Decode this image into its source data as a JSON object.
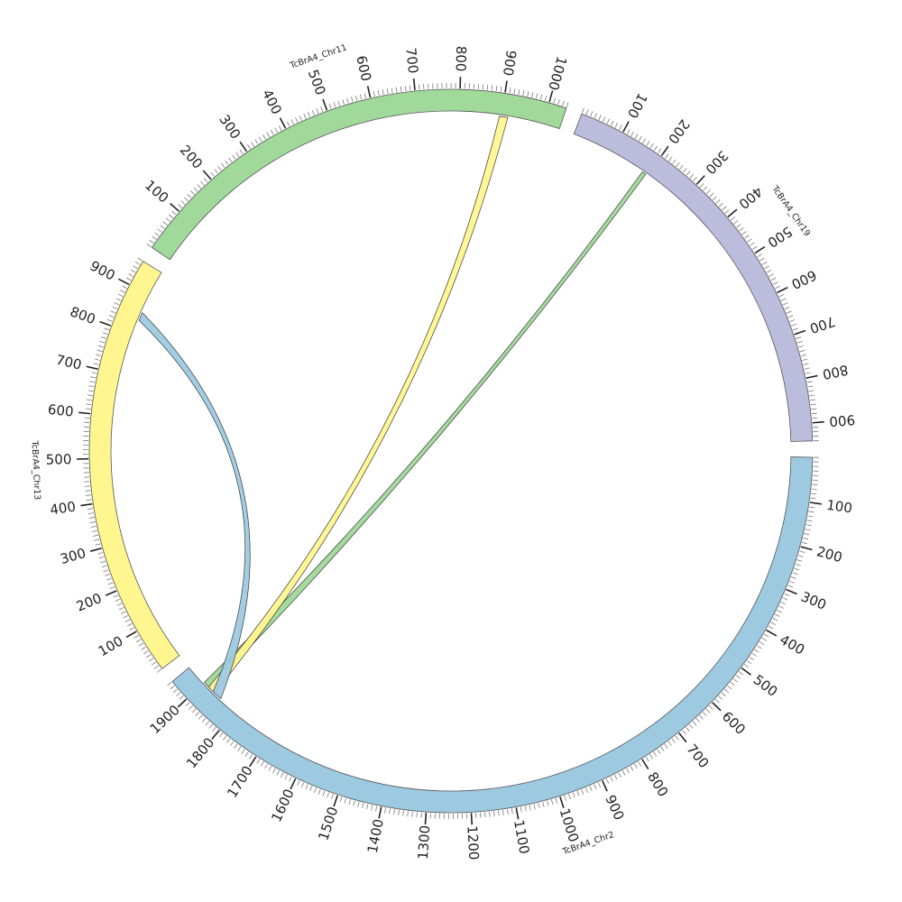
{
  "chart_data": {
    "type": "circos",
    "units": "Mb",
    "tick_major_step": 100,
    "tick_minor_step": 10,
    "chromosomes": [
      {
        "name": "TcBrA4_Chr2",
        "label": "TcBrA4_Chr2",
        "length": 1950,
        "color": "#9ecae1"
      },
      {
        "name": "TcBrA4_Chr13",
        "label": "TcBrA4_Chr13",
        "length": 960,
        "color": "#fff68f"
      },
      {
        "name": "TcBrA4_Chr11",
        "label": "TcBrA4_Chr11",
        "length": 1040,
        "color": "#a1d99b"
      },
      {
        "name": "TcBrA4_Chr19",
        "label": "TcBrA4_Chr19",
        "length": 940,
        "color": "#bcbddc"
      }
    ],
    "links": [
      {
        "from": {
          "chr": "TcBrA4_Chr2",
          "start": 1880,
          "end": 1900
        },
        "to": {
          "chr": "TcBrA4_Chr19",
          "start": 185,
          "end": 195
        },
        "color": "#a1d99b"
      },
      {
        "from": {
          "chr": "TcBrA4_Chr2",
          "start": 1865,
          "end": 1885
        },
        "to": {
          "chr": "TcBrA4_Chr11",
          "start": 895,
          "end": 915
        },
        "color": "#fff68f"
      },
      {
        "from": {
          "chr": "TcBrA4_Chr2",
          "start": 1845,
          "end": 1870
        },
        "to": {
          "chr": "TcBrA4_Chr13",
          "start": 835,
          "end": 855
        },
        "color": "#9ecae1"
      }
    ]
  }
}
